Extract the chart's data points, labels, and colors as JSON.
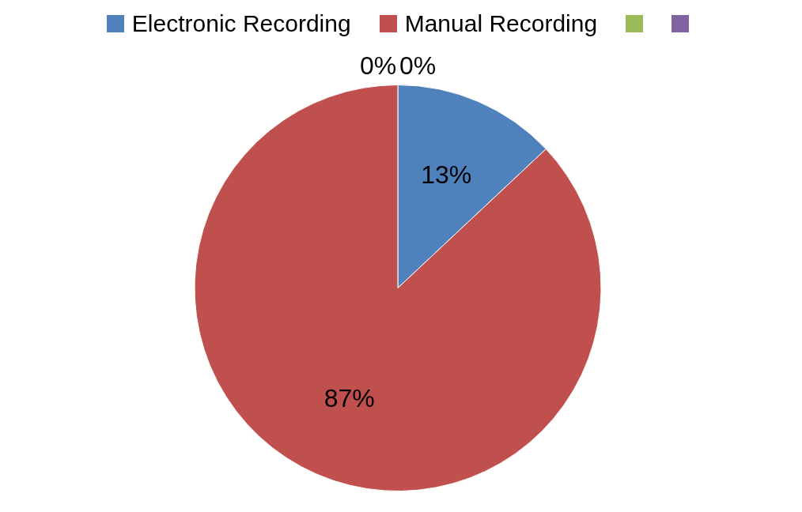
{
  "chart_data": {
    "type": "pie",
    "categories": [
      "Electronic Recording",
      "Manual Recording",
      null,
      null
    ],
    "values": [
      13,
      87,
      0,
      0
    ],
    "colors": [
      "#4f81bd",
      "#c0504d",
      "#9bbb59",
      "#8064a2"
    ],
    "value_labels": [
      "13%",
      "87%",
      "0%",
      "0%"
    ],
    "legend": "top"
  }
}
